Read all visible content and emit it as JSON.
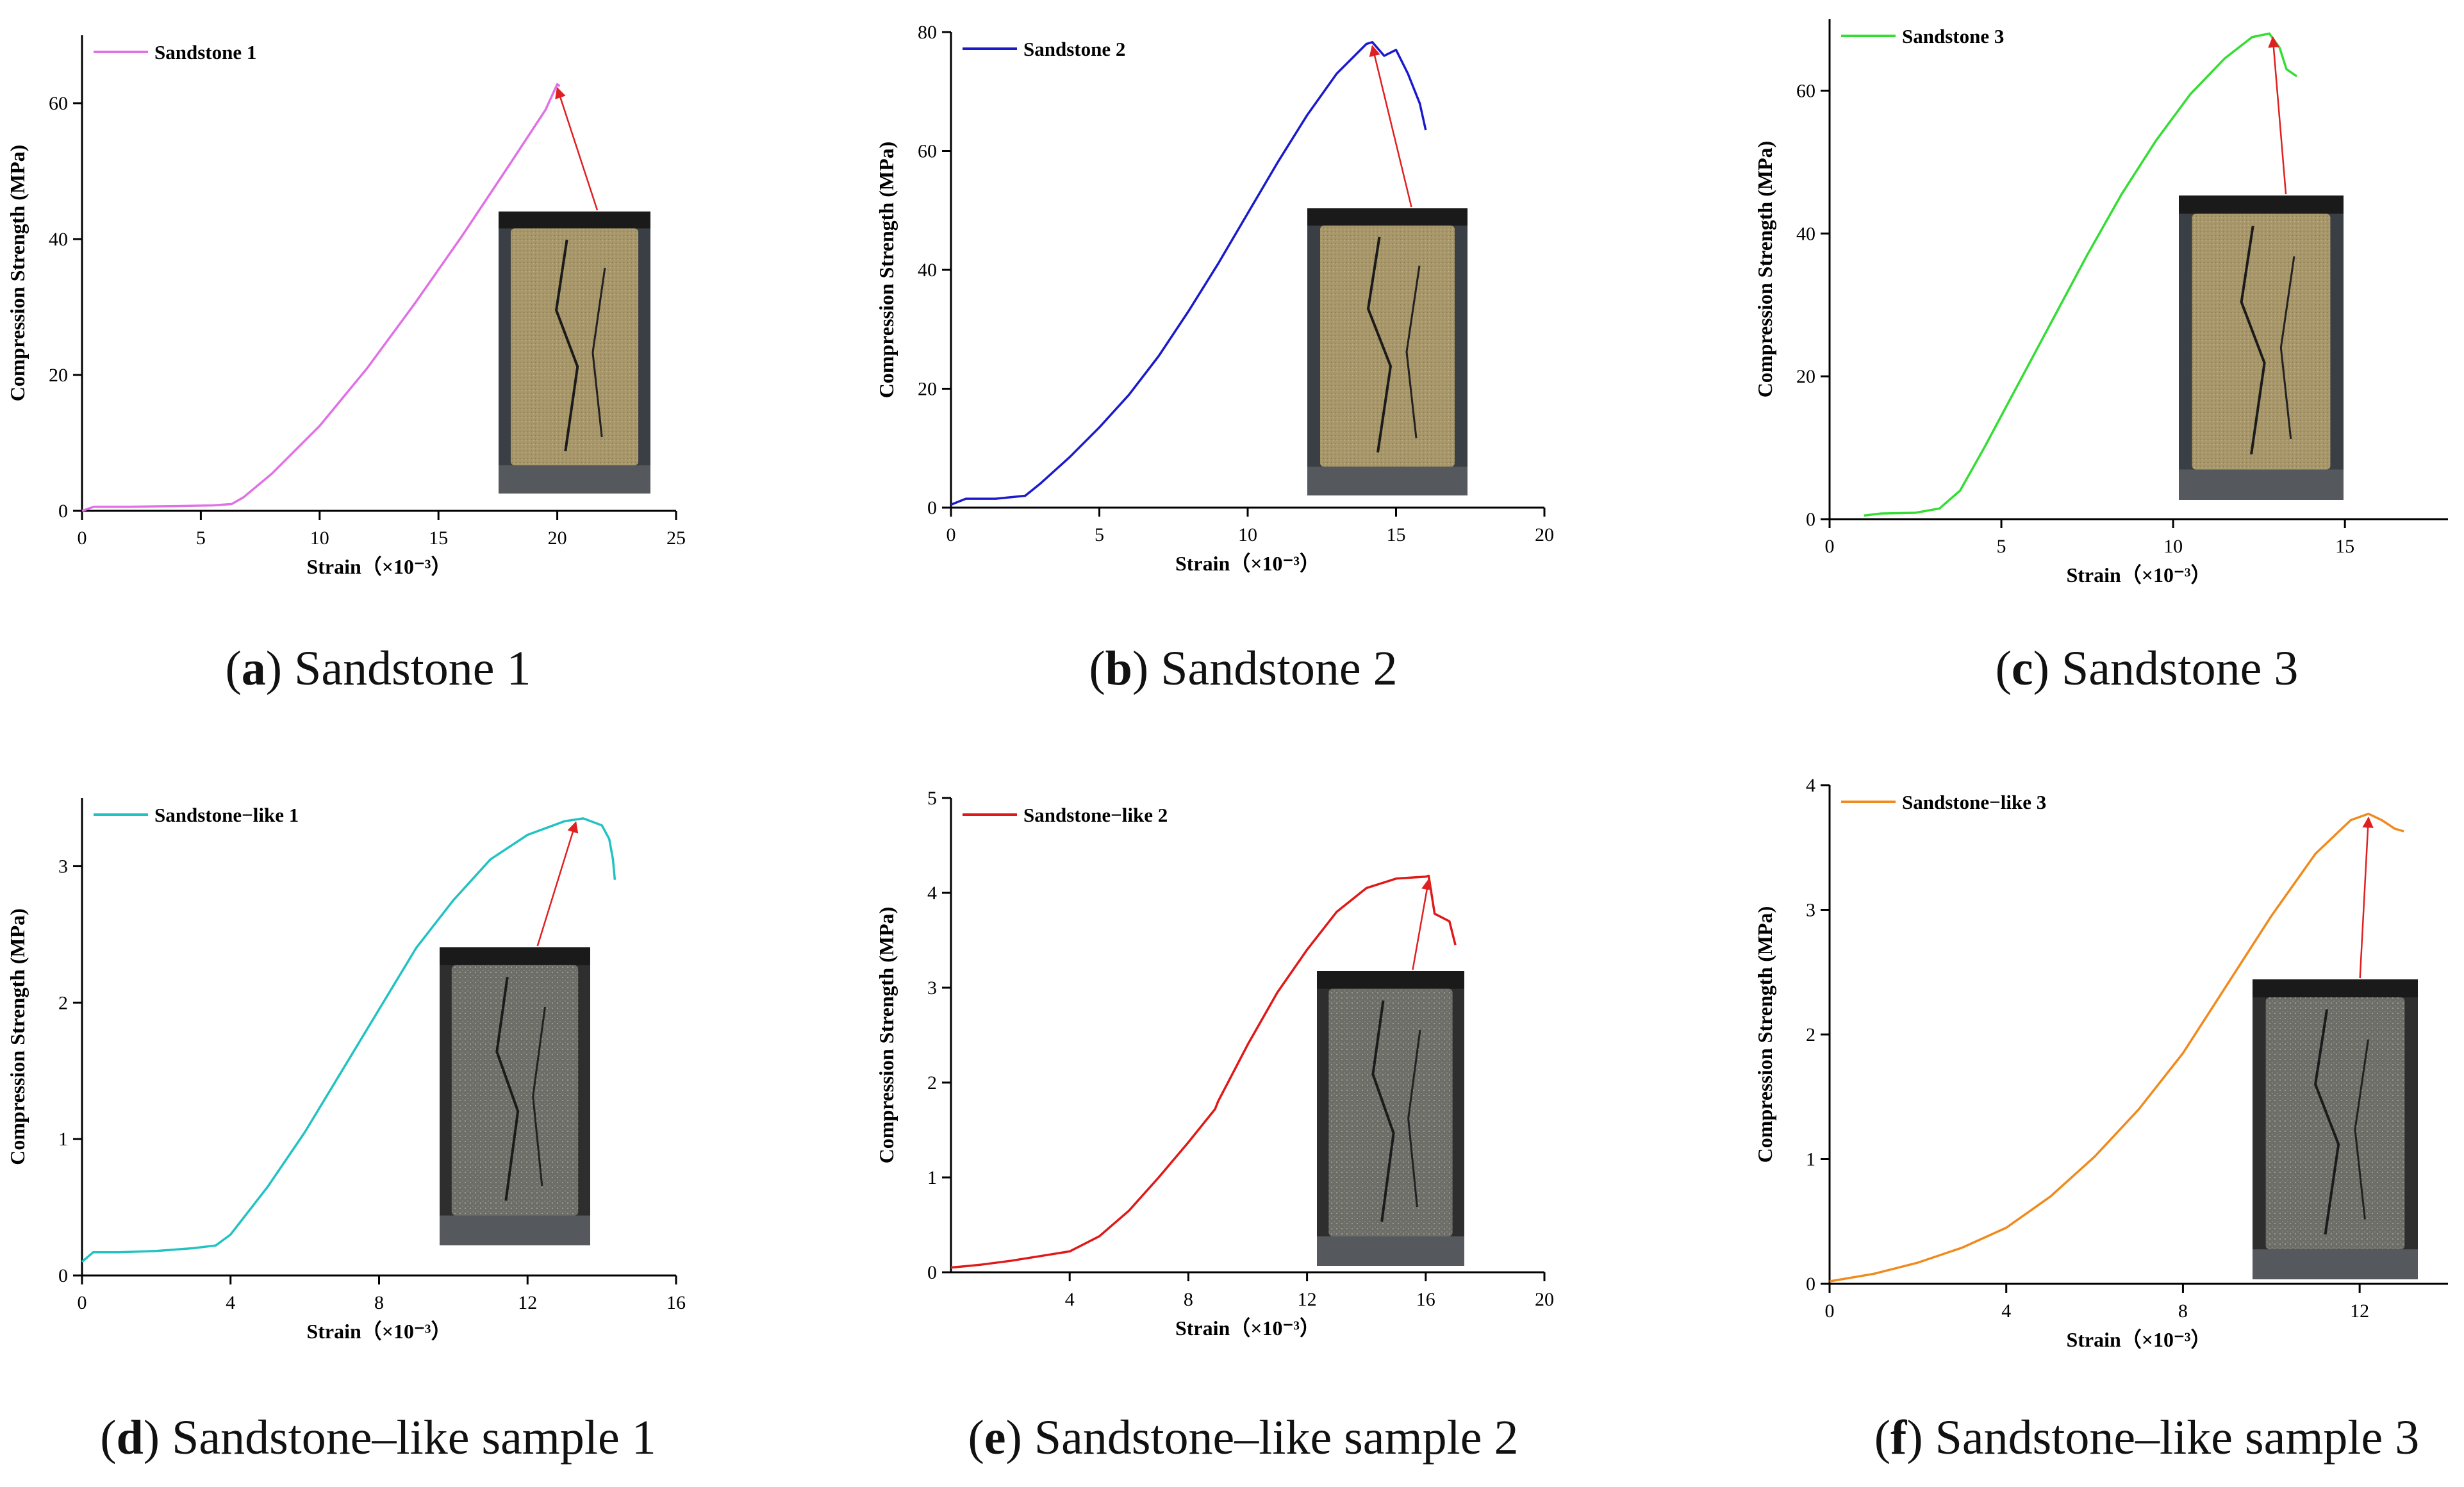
{
  "figure": {
    "captions": [
      {
        "letter": "a",
        "text": "Sandstone 1"
      },
      {
        "letter": "b",
        "text": "Sandstone 2"
      },
      {
        "letter": "c",
        "text": "Sandstone 3"
      },
      {
        "letter": "d",
        "text": "Sandstone–like sample 1"
      },
      {
        "letter": "e",
        "text": "Sandstone–like sample 2"
      },
      {
        "letter": "f",
        "text": "Sandstone–like sample 3"
      }
    ]
  },
  "chart_data": [
    {
      "type": "line",
      "ylabel": "Compression Strength (MPa)",
      "xlabel": "Strain（×10⁻³）",
      "xlim": [
        0,
        25
      ],
      "ylim": [
        0,
        70
      ],
      "xticks": [
        0,
        5,
        10,
        15,
        20,
        25
      ],
      "yticks": [
        0,
        20,
        40,
        60
      ],
      "legend": "top-left",
      "grid": false,
      "series": [
        {
          "name": "Sandstone 1",
          "color": "#e070e6",
          "x": [
            0,
            0.5,
            2,
            4,
            5.5,
            6.3,
            6.8,
            8,
            10,
            12,
            14,
            16,
            18,
            19.5,
            20,
            20.1
          ],
          "y": [
            0,
            0.6,
            0.6,
            0.7,
            0.8,
            1.0,
            2.0,
            5.5,
            12.5,
            21,
            30.5,
            40.5,
            51,
            59,
            62.8,
            62.5
          ]
        }
      ],
      "peak": [
        20,
        62.8
      ]
    },
    {
      "type": "line",
      "ylabel": "Compression Strength (MPa)",
      "xlabel": "Strain（×10⁻³）",
      "xlim": [
        0,
        20
      ],
      "ylim": [
        0,
        80
      ],
      "xticks": [
        0,
        5,
        10,
        15,
        20
      ],
      "yticks": [
        0,
        20,
        40,
        60,
        80
      ],
      "legend": "top-left",
      "grid": false,
      "series": [
        {
          "name": "Sandstone 2",
          "color": "#1a1acc",
          "x": [
            0,
            0.5,
            1.5,
            2.5,
            3,
            4,
            5,
            6,
            7,
            8,
            9,
            10,
            11,
            12,
            13,
            14,
            14.2,
            14.6,
            15,
            15.4,
            15.8,
            16
          ],
          "y": [
            0.5,
            1.5,
            1.5,
            2,
            4,
            8.5,
            13.5,
            19,
            25.5,
            33,
            41,
            49.5,
            58,
            66,
            73,
            78,
            78.3,
            76,
            77,
            73,
            68,
            63.5
          ]
        }
      ],
      "peak": [
        14.2,
        78.3
      ]
    },
    {
      "type": "line",
      "ylabel": "Compression Strength (MPa)",
      "xlabel": "Strain（×10⁻³）",
      "xlim": [
        0,
        18
      ],
      "ylim": [
        0,
        70
      ],
      "xticks": [
        0,
        5,
        10,
        15
      ],
      "yticks": [
        0,
        20,
        40,
        60
      ],
      "legend": "top-left",
      "grid": false,
      "series": [
        {
          "name": "Sandstone 3",
          "color": "#33dd33",
          "x": [
            1,
            1.5,
            2.5,
            3.2,
            3.8,
            4.5,
            5.5,
            6.5,
            7.5,
            8.5,
            9.5,
            10.5,
            11.5,
            12.3,
            12.8,
            13.1,
            13.3,
            13.6
          ],
          "y": [
            0.5,
            0.8,
            0.9,
            1.5,
            4,
            10,
            19,
            28,
            37,
            45.5,
            53,
            59.5,
            64.5,
            67.5,
            68,
            66,
            63,
            62
          ]
        }
      ],
      "peak": [
        12.9,
        68
      ]
    },
    {
      "type": "line",
      "ylabel": "Compression Strength (MPa)",
      "xlabel": "Strain（×10⁻³）",
      "xlim": [
        0,
        16
      ],
      "ylim": [
        0,
        3.5
      ],
      "xticks": [
        0,
        4,
        8,
        12,
        16
      ],
      "yticks": [
        0,
        1,
        2,
        3
      ],
      "legend": "top-left",
      "grid": false,
      "series": [
        {
          "name": "Sandstone−like 1",
          "color": "#22c2c2",
          "x": [
            0,
            0.3,
            1,
            2,
            3,
            3.6,
            4,
            5,
            6,
            7,
            8,
            9,
            10,
            11,
            12,
            13,
            13.5,
            14,
            14.2,
            14.3,
            14.35
          ],
          "y": [
            0.1,
            0.17,
            0.17,
            0.18,
            0.2,
            0.22,
            0.3,
            0.65,
            1.05,
            1.5,
            1.95,
            2.4,
            2.75,
            3.05,
            3.23,
            3.33,
            3.35,
            3.3,
            3.2,
            3.05,
            2.9
          ]
        }
      ],
      "peak": [
        13.3,
        3.35
      ]
    },
    {
      "type": "line",
      "ylabel": "Compression Strength (MPa)",
      "xlabel": "Strain（×10⁻³）",
      "xlim": [
        0,
        20
      ],
      "ylim": [
        0,
        5
      ],
      "xticks": [
        4,
        8,
        12,
        16,
        20
      ],
      "yticks": [
        0,
        1,
        2,
        3,
        4,
        5
      ],
      "legend": "top-left",
      "grid": false,
      "series": [
        {
          "name": "Sandstone−like 2",
          "color": "#e01818",
          "x": [
            0,
            1,
            2,
            3,
            4,
            5,
            6,
            7,
            8,
            8.9,
            9,
            10,
            11,
            12,
            13,
            14,
            15,
            16,
            16.1,
            16.3,
            16.8,
            17
          ],
          "y": [
            0.05,
            0.08,
            0.12,
            0.17,
            0.22,
            0.38,
            0.65,
            1.0,
            1.37,
            1.72,
            1.8,
            2.4,
            2.95,
            3.4,
            3.8,
            4.05,
            4.15,
            4.17,
            4.18,
            3.78,
            3.7,
            3.45
          ]
        }
      ],
      "peak": [
        16.1,
        4.18
      ]
    },
    {
      "type": "line",
      "ylabel": "Compression Strength (MPa)",
      "xlabel": "Strain（×10⁻³）",
      "xlim": [
        0,
        14
      ],
      "ylim": [
        0,
        4
      ],
      "xticks": [
        0,
        4,
        8,
        12
      ],
      "yticks": [
        0,
        1,
        2,
        3,
        4
      ],
      "legend": "top-left",
      "grid": false,
      "series": [
        {
          "name": "Sandstone−like 3",
          "color": "#f08a1c",
          "x": [
            0,
            1,
            2,
            3,
            4,
            5,
            6,
            7,
            8,
            9,
            10,
            11,
            11.8,
            12.2,
            12.5,
            12.8,
            13
          ],
          "y": [
            0.02,
            0.08,
            0.17,
            0.29,
            0.45,
            0.7,
            1.02,
            1.4,
            1.85,
            2.4,
            2.95,
            3.45,
            3.72,
            3.77,
            3.72,
            3.65,
            3.63
          ]
        }
      ],
      "peak": [
        12.2,
        3.77
      ]
    }
  ]
}
